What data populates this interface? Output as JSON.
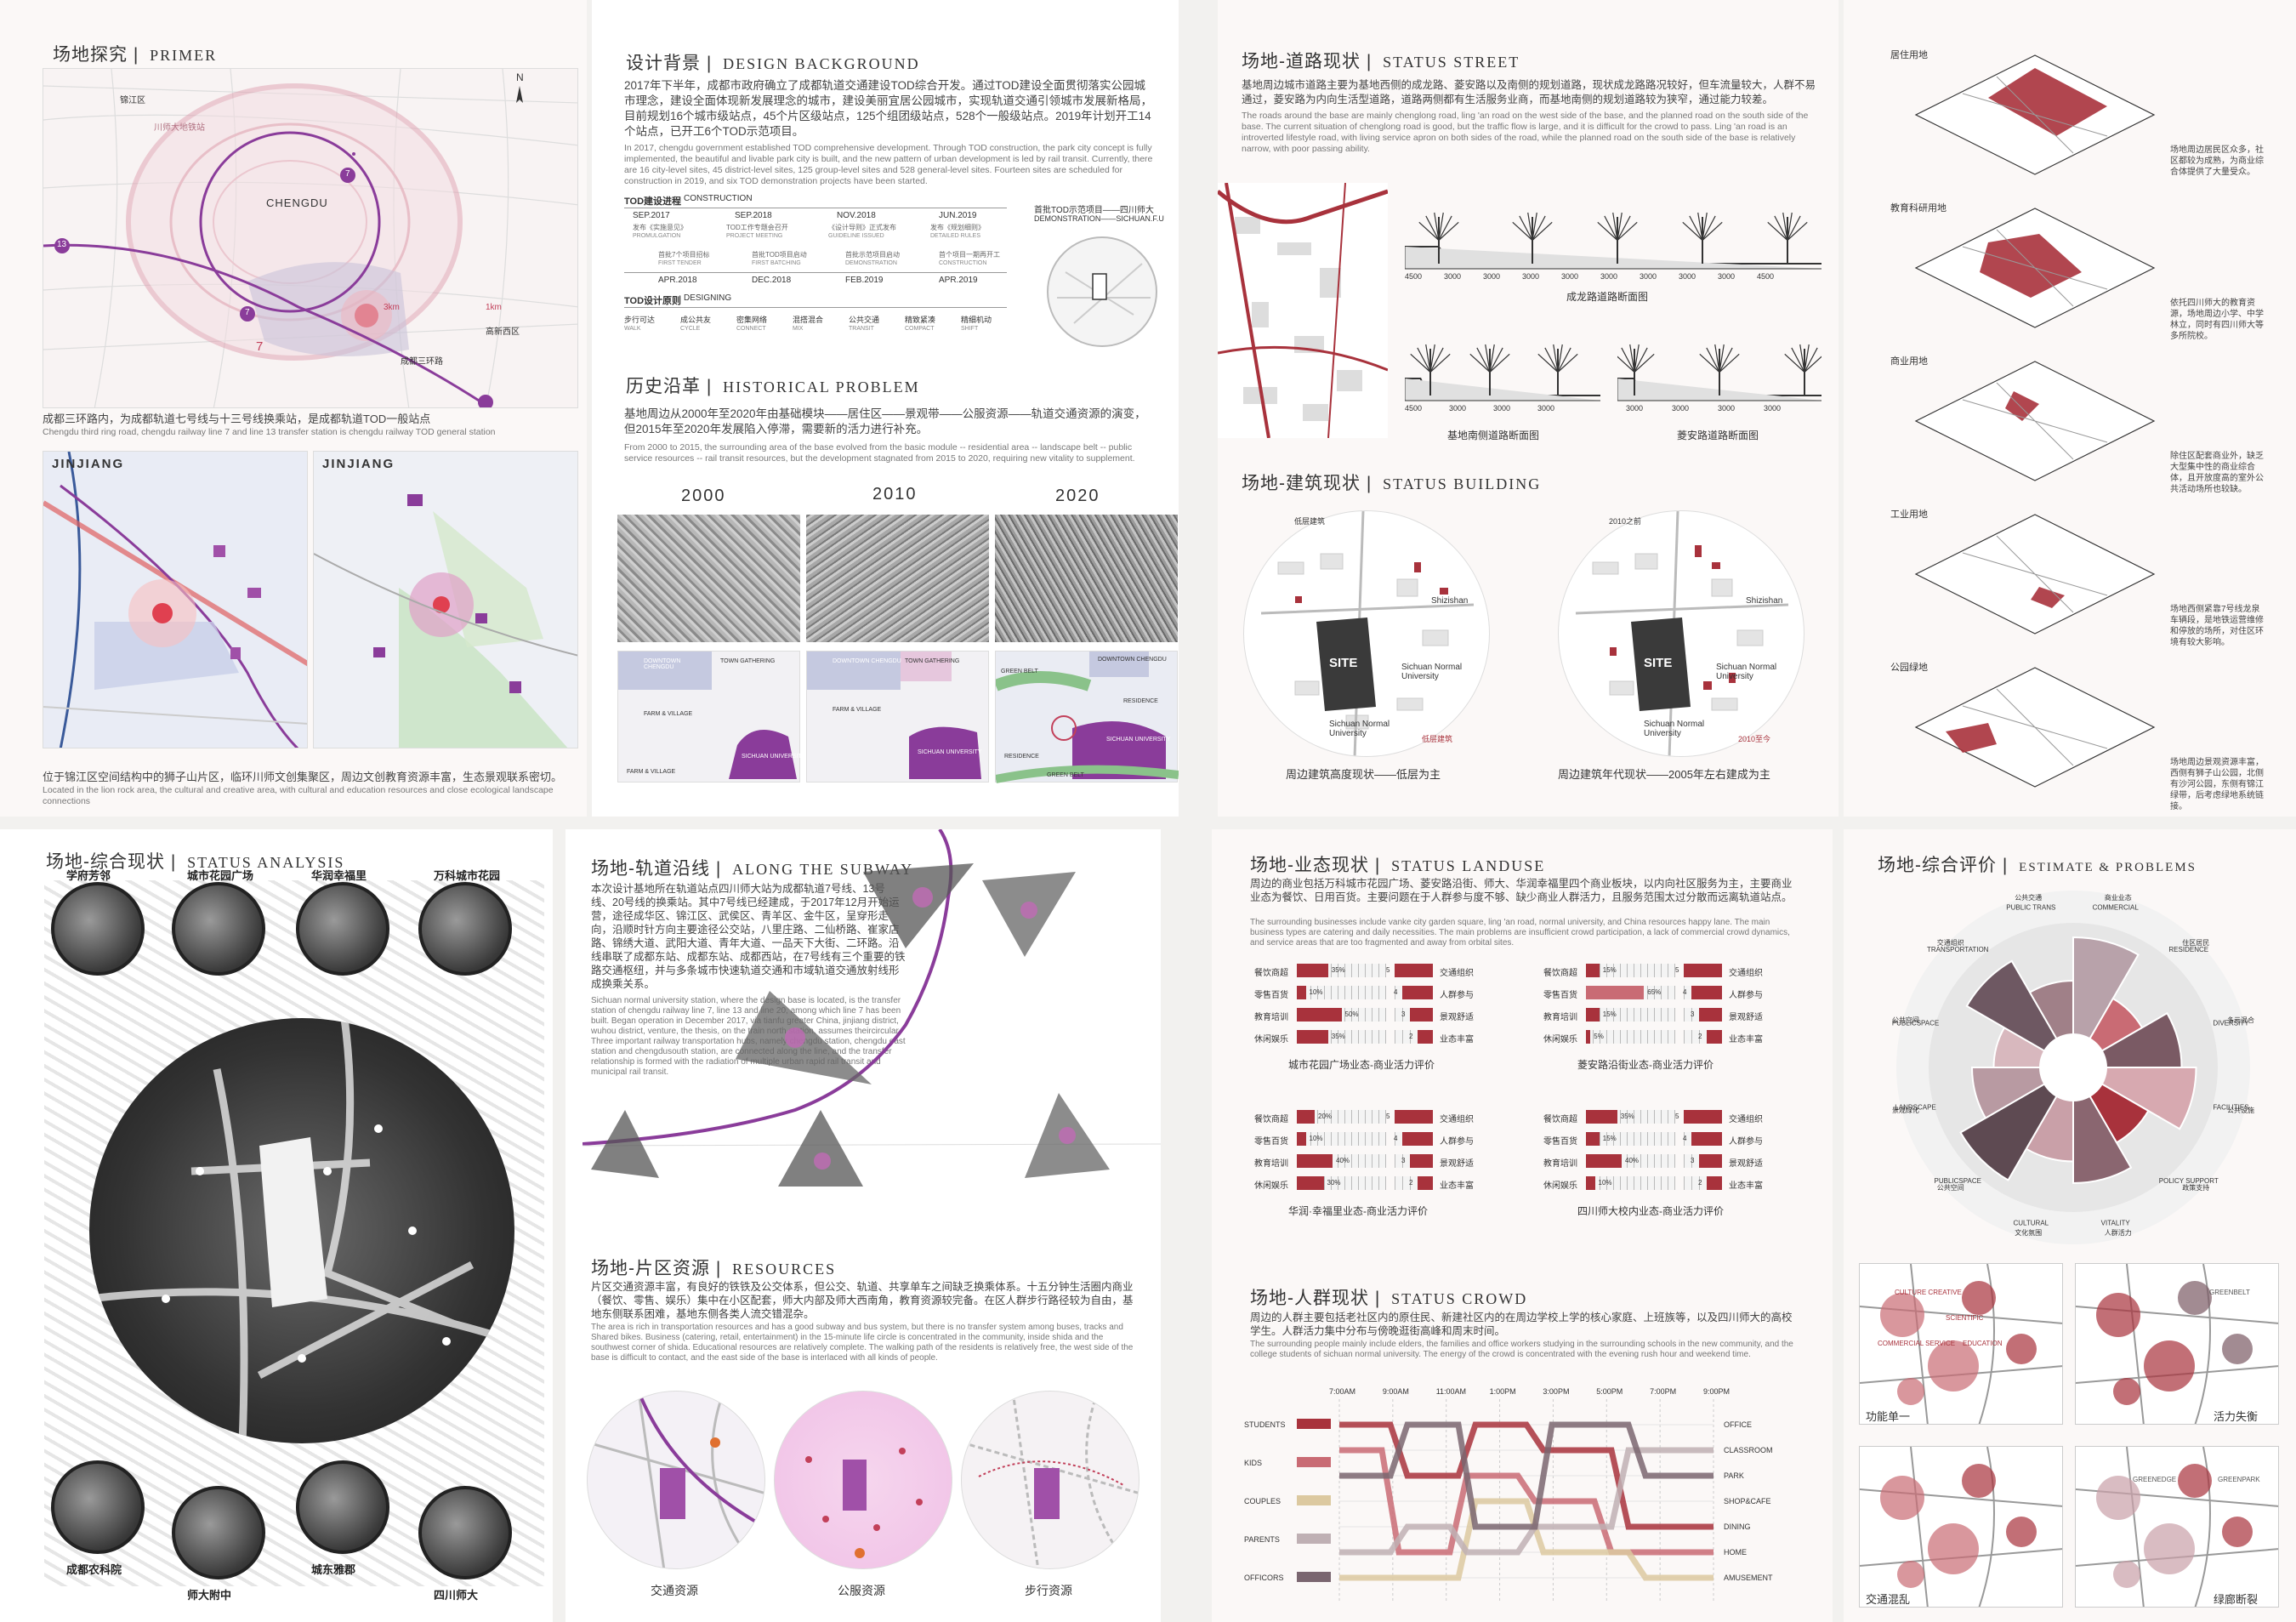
{
  "primer": {
    "title_cn": "场地探究",
    "sep": "|",
    "title_en": "PRIMER",
    "map_labels": [
      "CHENGDU",
      "13",
      "7",
      "7",
      "7",
      "13",
      "7",
      "川师大地铁站",
      "成都三环路",
      "锦江区",
      "高新西区",
      "天府新区",
      "人民南路",
      "3km",
      "1km"
    ],
    "caption_cn": "成都三环路内，为成都轨道七号线与十三号线换乘站，是成都轨道TOD一般站点",
    "caption_en": "Chengdu third ring road, chengdu railway line 7 and line 13 transfer station is chengdu railway TOD general station",
    "sub_titles": [
      "JINJIANG",
      "JINJIANG"
    ],
    "bottom_cn": "位于锦江区空间结构中的狮子山片区，临环川师文创集聚区，周边文创教育资源丰富，生态景观联系密切。",
    "bottom_en": "Located in the lion rock area, the cultural and creative area, with cultural and education resources and close ecological landscape connections"
  },
  "design": {
    "title_cn": "设计背景",
    "sep": "|",
    "title_en": "DESIGN BACKGROUND",
    "para_cn": "2017年下半年，成都市政府确立了成都轨道交通建设TOD综合开发。通过TOD建设全面贯彻落实公园城市理念，建设全面体现新发展理念的城市，建设美丽宜居公园城市，实现轨道交通引领城市发展新格局，目前规划16个城市级站点，45个片区级站点，125个组团级站点，528个一般级站点。2019年计划开工14个站点，已开工6个TOD示范项目。",
    "para_en": "In 2017, chengdu government established TOD comprehensive development. Through TOD construction, the park city concept is fully implemented, the beautiful and livable park city is built, and the new pattern of urban development is led by rail transit. Currently, there are 16 city-level sites, 45 district-level sites, 125 group-level sites and 528 general-level sites. Fourteen sites are scheduled for construction in 2019, and six TOD demonstration projects have been started.",
    "tod1_label": "TOD建设进程",
    "tod1_en": "CONSTRUCTION",
    "dates_top": [
      "SEP.2017",
      "SEP.2018",
      "NOV.2018",
      "JUN.2019"
    ],
    "items_top": [
      "发布《实施意见》",
      "TOD工作专题会召开",
      "《设计导则》正式发布",
      "发布《规划细则》"
    ],
    "items_top_en": [
      "PROMULGATION",
      "PROJECT MEETING",
      "GUIDELINE ISSUED",
      "DETAILED RULES"
    ],
    "items_bot": [
      "首批7个项目招标",
      "首批TOD项目启动",
      "首批示范项目启动",
      "首个项目一期再开工"
    ],
    "items_bot_en": [
      "FIRST TENDER",
      "FIRST BATCHING",
      "DEMONSTRATION",
      "CONSTRUCTION"
    ],
    "dates_bot": [
      "APR.2018",
      "DEC.2018",
      "FEB.2019",
      "APR.2019"
    ],
    "demo": "首批TOD示范项目——四川师大",
    "demo_en": "DEMONSTRATION——SICHUAN.F.U",
    "tod2_label": "TOD设计原则",
    "tod2_en": "DESIGNING",
    "principles": [
      "步行可达",
      "成公共友",
      "密集网络",
      "混搭混合",
      "公共交通",
      "精致紧凑",
      "精细机动"
    ],
    "principles_en": [
      "WALK",
      "CYCLE",
      "CONNECT",
      "MIX",
      "TRANSIT",
      "COMPACT",
      "SHIFT"
    ]
  },
  "history": {
    "title_cn": "历史沿革",
    "sep": "|",
    "title_en": "HISTORICAL PROBLEM",
    "para_cn": "基地周边从2000年至2020年由基础模块——居住区——景观带——公服资源——轨道交通资源的演变，但2015年至2020年发展陷入停滞，需要新的活力进行补充。",
    "para_en": "From 2000 to 2015, the surrounding area of the base evolved from the basic module -- residential area -- landscape belt -- public service resources -- rail transit resources, but the development stagnated from 2015 to 2020, requiring new vitality to supplement.",
    "years": [
      "2000",
      "2010",
      "2020"
    ],
    "diag_labels": [
      "DOWNTOWN CHENGDU",
      "TOWN GATHERING",
      "FARM & VILLAGE",
      "FARM & VILLAGE",
      "SICHUAN UNIVERSITY",
      "DOWNTOWN CHENGDU",
      "TOWN GATHERING",
      "FARM & VILLAGE",
      "SICHUAN UNIVERSITY",
      "GREEN BELT",
      "DOWNTOWN CHENGDU",
      "RESIDENCE",
      "SICHUAN UNIVERSITY",
      "RESIDENCE",
      "GREEN BELT"
    ]
  },
  "street": {
    "title_cn": "场地-道路现状",
    "sep": "|",
    "title_en": "STATUS STREET",
    "para_cn": "基地周边城市道路主要为基地西侧的成龙路、菱安路以及南侧的规划道路，现状成龙路路况较好，但车流量较大，人群不易通过，菱安路为内向生活型道路，道路两侧都有生活服务业商，而基地南侧的规划道路较为狭窄，通过能力较差。",
    "para_en": "The roads around the base are mainly chenglong road, ling 'an road on the west side of the base, and the planned road on the south side of the base. The current situation of chenglong road is good, but the traffic flow is large, and it is difficult for the crowd to pass. Ling 'an road is an introverted lifestyle road, with living service apron on both sides of the road, while the planned road on the south side of the base is relatively narrow, with poor passing ability.",
    "dims1": [
      "4500",
      "3000",
      "3000",
      "3000",
      "3000",
      "3000",
      "3000",
      "3000",
      "3000",
      "4500"
    ],
    "cap1": "成龙路道路断面图",
    "dims2": [
      "4500",
      "3000",
      "3000",
      "3000"
    ],
    "cap2": "基地南侧道路断面图",
    "dims3": [
      "3000",
      "3000",
      "3000",
      "3000"
    ],
    "cap3": "菱安路道路断面图"
  },
  "building": {
    "title_cn": "场地-建筑现状",
    "sep": "|",
    "title_en": "STATUS BUILDING",
    "legend1": "低层建筑",
    "legend1b": "低层建筑",
    "legend2a": "2010之前",
    "legend2b": "2010至今",
    "labels": [
      "SITE",
      "Shizishan",
      "Sichuan Normal University",
      "Sichuan Normal University",
      "SITE",
      "Shizishan",
      "Sichuan Normal University",
      "Sichuan Normal University"
    ],
    "cap1": "周边建筑高度现状——低层为主",
    "cap2": "周边建筑年代现状——2005年左右建成为主"
  },
  "landuse_iso": {
    "items": [
      {
        "label": "居住用地",
        "note": "场地周边居民区众多，社区都较为成熟，为商业综合体提供了大量受众。"
      },
      {
        "label": "教育科研用地",
        "note": "依托四川师大的教育资源，场地周边小学、中学林立，同时有四川师大等多所院校。"
      },
      {
        "label": "商业用地",
        "note": "除住区配套商业外，缺乏大型集中性的商业综合体，且开放度高的室外公共活动场所也较缺。"
      },
      {
        "label": "工业用地",
        "note": "场地西侧紧靠7号线龙泉车辆段，是地铁运营维修和停放的场所，对住区环境有较大影响。"
      },
      {
        "label": "公园绿地",
        "note": "场地周边景观资源丰富，西侧有狮子山公园，北侧有沙河公园，东侧有锦江绿带，后考虑绿地系统链接。"
      }
    ]
  },
  "analysis": {
    "title_cn": "场地-综合现状",
    "sep": "|",
    "title_en": "STATUS ANALYSIS",
    "photos_top": [
      "学府芳邻",
      "城市花园广场",
      "华润幸福里",
      "万科城市花园"
    ],
    "photos_bot": [
      "成都农科院",
      "师大附中",
      "城东雅郡",
      "四川师大"
    ]
  },
  "subway": {
    "title_cn": "场地-轨道沿线",
    "sep": "|",
    "title_en": "ALONG THE SUBWAY",
    "para_cn": "本次设计基地所在轨道站点四川师大站为成都轨道7号线、13号线、20号线的换乘站。其中7号线已经建成，于2017年12月开始运营，途径成华区、锦江区、武侯区、青羊区、金牛区，呈穿形走向，沿顺时针方向主要途径公交站，八里庄路、二仙桥路、崔家店路、锦绣大道、武阳大道、青年大道、一品天下大街、二环路。沿线串联了成都东站、成都东站、成都西站，在7号线有三个重要的铁路交通枢纽，并与多条城市快速轨道交通和市域轨道交通放射线形成换乘关系。",
    "para_en": "Sichuan normal university station, where the design base is located, is the transfer station of chengdu railway line 7, line 13 and line 20, among which line 7 has been built. Began operation in December 2017, via tianfu greater China, jinjiang district, wuhou district, venture, the thesis, on the train north station, assumes theircircular. Three important railway transportation hubs, namely chengdu station, chengdu east station and chengdusouth station, are connected along the line, and the transfer relationship is formed with the radiation of multiple urban rapid rail transit and municipal rail transit."
  },
  "resources": {
    "title_cn": "场地-片区资源",
    "sep": "|",
    "title_en": "RESOURCES",
    "para_cn": "片区交通资源丰富，有良好的铁铁及公交体系，但公交、轨道、共享单车之间缺乏换乘体系。十五分钟生活圈内商业（餐饮、零售、娱乐）集中在小区配套，师大内部及师大西南角，教育资源较完备。在区人群步行路径较为自由，基地东侧联系困难，基地东侧各类人流交错混杂。",
    "para_en": "The area is rich in transportation resources and has a good subway and bus system, but there is no transfer system among buses, tracks and Shared bikes. Business (catering, retail, entertainment) in the 15-minute life circle is concentrated in the community, inside shida and the southwest corner of shida. Educational resources are relatively complete. The walking path of the residents is relatively free, the west side of the base is difficult to contact, and the east side of the base is interlaced with all kinds of people.",
    "caps": [
      "交通资源",
      "公服资源",
      "步行资源"
    ]
  },
  "landuse": {
    "title_cn": "场地-业态现状",
    "sep": "|",
    "title_en": "STATUS LANDUSE",
    "para_cn": "周边的商业包括万科城市花园广场、菱安路沿街、师大、华润幸福里四个商业板块，以内向社区服务为主，主要商业业态为餐饮、日用百货。主要问题在于人群参与度不够、缺少商业人群活力，且服务范围太过分散而远离轨道站点。",
    "para_en": "The surrounding businesses include vanke city garden square, ling 'an road, normal university, and China resources happy lane. The main business types are catering and daily necessities. The main problems are insufficient crowd participation, a lack of commercial crowd dynamics, and service areas that are too fragmented and away from orbital sites.",
    "left_labels": [
      "餐饮商超",
      "零售百货",
      "教育培训",
      "休闲娱乐"
    ],
    "right_labels": [
      "交通组织",
      "人群参与",
      "景观舒适",
      "业态丰富"
    ],
    "charts": [
      {
        "caption": "城市花园广场业态-商业活力评价",
        "left": [
          35,
          10,
          50,
          35
        ],
        "right": [
          5,
          4,
          3,
          2
        ]
      },
      {
        "caption": "菱安路沿街业态-商业活力评价",
        "left": [
          15,
          65,
          15,
          5
        ],
        "right": [
          5,
          4,
          3,
          2
        ]
      },
      {
        "caption": "华润·幸福里业态-商业活力评价",
        "left": [
          20,
          10,
          40,
          30
        ],
        "right": [
          5,
          4,
          3,
          2
        ]
      },
      {
        "caption": "四川师大校内业态-商业活力评价",
        "left": [
          35,
          15,
          40,
          10
        ],
        "right": [
          5,
          4,
          3,
          2
        ]
      }
    ]
  },
  "crowd": {
    "title_cn": "场地-人群现状",
    "sep": "|",
    "title_en": "STATUS CROWD",
    "para_cn": "周边的人群主要包括老社区内的原住民、新建社区内的在周边学校上学的核心家庭、上班族等，以及四川师大的高校学生。人群活力集中分布与傍晚逛街高峰和周末时间。",
    "para_en": "The surrounding people mainly include elders, the families and office workers studying in the surrounding schools in the new community, and the college students of sichuan normal university. The energy of the crowd is concentrated with the evening rush hour and weekend time.",
    "times": [
      "7:00AM",
      "9:00AM",
      "11:00AM",
      "1:00PM",
      "3:00PM",
      "5:00PM",
      "7:00PM",
      "9:00PM"
    ],
    "groups": [
      "STUDENTS",
      "KIDS",
      "COUPLES",
      "PARENTS",
      "OFFICORS"
    ],
    "places": [
      "OFFICE",
      "CLASSROOM",
      "PARK",
      "SHOP&CAFE",
      "DINING",
      "HOME",
      "AMUSEMENT"
    ]
  },
  "estimate": {
    "title_cn": "场地-综合评价",
    "sep": "|",
    "title_en": "ESTIMATE & PROBLEMS",
    "segments": [
      "COMMERCIAL\n商业业态",
      "RESIDENCE\n住区居民",
      "DIVERSITY\n多元混合",
      "FACILITIES\n公共设施",
      "POLICY SUPPORT\n政策支持",
      "VITALITY\n人群活力",
      "CULTURAL\n文化氛围",
      "PUBLICSPACE\n公共空间",
      "LANDSCAPE\n景观绿化",
      "PUBLICSPACE\n公共空间",
      "TRANSPORTATION\n交通组织",
      "PUBLIC TRANS\n公共交通"
    ],
    "problems": [
      "功能单一",
      "活力失衡",
      "交通混乱",
      "绿廊断裂"
    ],
    "tags": [
      "SCIENTIFIC",
      "EDUCATION",
      "CULTURE CREATIVE",
      "COMMERCIAL SERVICE",
      "GREENBELT",
      "GREENEDGE",
      "GREENPARK"
    ]
  }
}
